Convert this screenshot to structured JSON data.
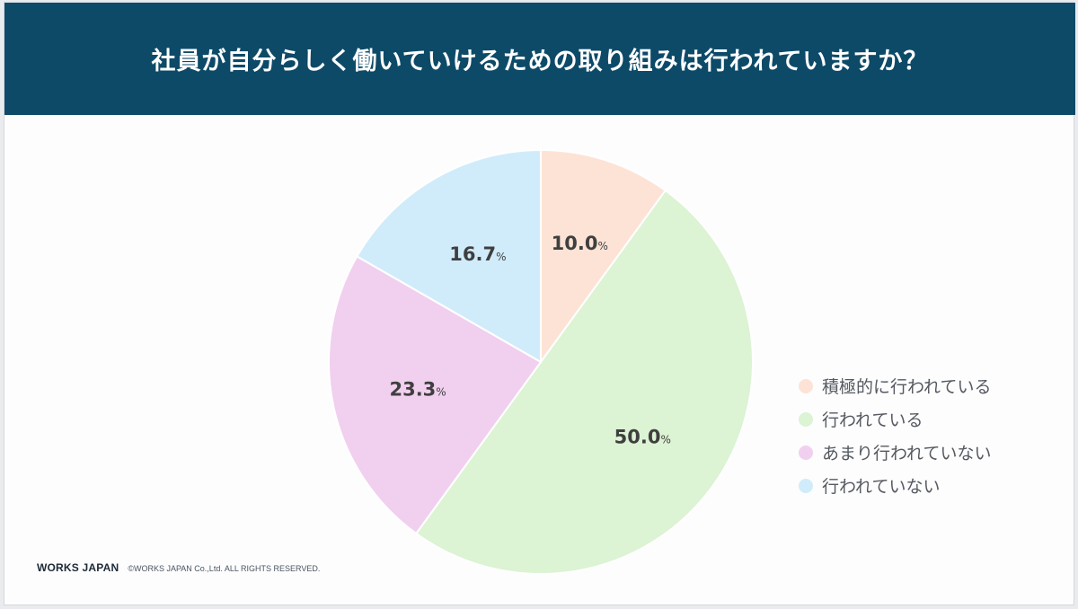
{
  "header": {
    "title": "社員が自分らしく働いていけるための取り組みは行われていますか？"
  },
  "chart_data": {
    "type": "pie",
    "title": "社員が自分らしく働いていけるための取り組みは行われていますか？",
    "unit": "%",
    "slices": [
      {
        "label": "積極的に行われている",
        "value": 10.0,
        "display": "10.0",
        "color": "#fde3d6"
      },
      {
        "label": "行われている",
        "value": 50.0,
        "display": "50.0",
        "color": "#dcf3d4"
      },
      {
        "label": "あまり行われていない",
        "value": 23.3,
        "display": "23.3",
        "color": "#f1d0ef"
      },
      {
        "label": "行われていない",
        "value": 16.7,
        "display": "16.7",
        "color": "#d0ecfb"
      }
    ],
    "start_angle": "12 o'clock",
    "direction": "clockwise",
    "legend_position": "right"
  },
  "footer": {
    "brand": "WORKS JAPAN",
    "copyright": "©WORKS JAPAN Co.,Ltd. ALL RIGHTS RESERVED."
  },
  "colors": {
    "header_bg": "#0d4a68",
    "header_text": "#ffffff",
    "label_text": "#3f3f3f"
  }
}
